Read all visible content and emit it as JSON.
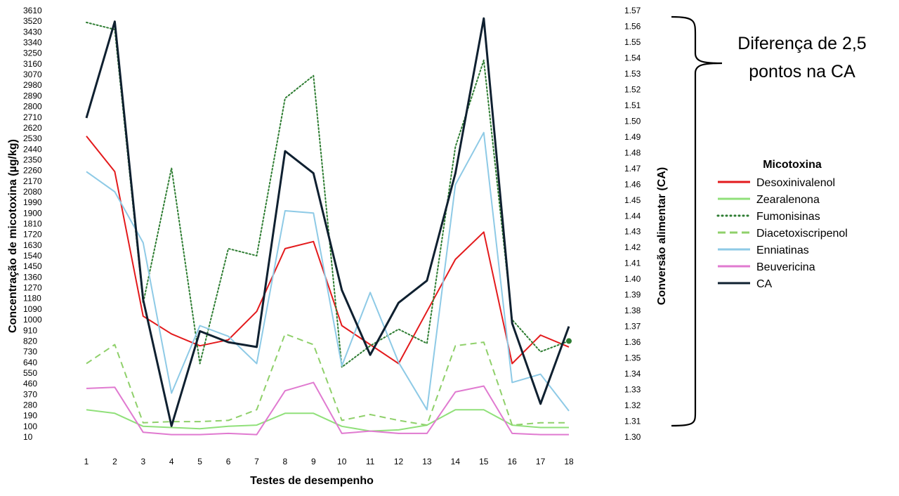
{
  "chart_data": {
    "type": "line",
    "xlabel": "Testes de desempenho",
    "ylabel": "Concentração de micotoxina (µg/kg)",
    "y2label": "Conversão alimentar (CA)",
    "x": [
      1,
      2,
      3,
      4,
      5,
      6,
      7,
      8,
      9,
      10,
      11,
      12,
      13,
      14,
      15,
      16,
      17,
      18
    ],
    "y_ticks": [
      10,
      100,
      190,
      280,
      370,
      460,
      550,
      640,
      730,
      820,
      910,
      1000,
      1090,
      1180,
      1270,
      1360,
      1450,
      1540,
      1630,
      1720,
      1810,
      1900,
      1990,
      2080,
      2170,
      2260,
      2350,
      2440,
      2530,
      2620,
      2710,
      2800,
      2890,
      2980,
      3070,
      3160,
      3250,
      3340,
      3430,
      3520,
      3610
    ],
    "ylim": [
      10,
      3610
    ],
    "y2_ticks": [
      "1.30",
      "1.31",
      "1.32",
      "1.33",
      "1.34",
      "1.35",
      "1.36",
      "1.37",
      "1.38",
      "1.39",
      "1.40",
      "1.41",
      "1.42",
      "1.43",
      "1.44",
      "1.45",
      "1.46",
      "1.47",
      "1.48",
      "1.49",
      "1.50",
      "1.51",
      "1.52",
      "1.53",
      "1.54",
      "1.55",
      "1.56",
      "1.57"
    ],
    "y2lim": [
      1.3,
      1.57
    ],
    "legend_title": "Micotoxina",
    "legend_position": "right",
    "annotation": [
      "Diferença de 2,5",
      "pontos na CA"
    ],
    "series": [
      {
        "name": "Desoxinivalenol",
        "axis": "left",
        "style": "solid",
        "color": "#e31a1c",
        "values": [
          2550,
          2250,
          1030,
          880,
          780,
          830,
          1070,
          1600,
          1660,
          950,
          790,
          630,
          1070,
          1510,
          1740,
          630,
          870,
          770
        ]
      },
      {
        "name": "Zearalenona",
        "axis": "left",
        "style": "solid",
        "color": "#90e07a",
        "values": [
          240,
          210,
          100,
          90,
          80,
          100,
          110,
          210,
          210,
          100,
          60,
          70,
          110,
          240,
          240,
          110,
          90,
          90
        ]
      },
      {
        "name": "Fumonisinas",
        "axis": "left",
        "style": "dotted",
        "color": "#2e7d32",
        "values": [
          3510,
          3450,
          1140,
          2280,
          630,
          1600,
          1540,
          2870,
          3060,
          600,
          780,
          920,
          800,
          2460,
          3190,
          1000,
          730,
          820
        ]
      },
      {
        "name": "Diacetoxiscripenol",
        "axis": "left",
        "style": "dashed",
        "color": "#8fd06a",
        "values": [
          630,
          790,
          130,
          140,
          140,
          150,
          240,
          880,
          790,
          150,
          200,
          150,
          110,
          780,
          810,
          110,
          130,
          130
        ]
      },
      {
        "name": "Enniatinas",
        "axis": "left",
        "style": "solid",
        "color": "#8ecae6",
        "values": [
          2250,
          2080,
          1650,
          380,
          950,
          860,
          630,
          1920,
          1900,
          610,
          1230,
          640,
          240,
          2140,
          2580,
          470,
          540,
          230
        ]
      },
      {
        "name": "Beuvericina",
        "axis": "left",
        "style": "solid",
        "color": "#e07ad0",
        "values": [
          420,
          430,
          50,
          30,
          30,
          40,
          30,
          400,
          470,
          40,
          60,
          40,
          40,
          390,
          440,
          40,
          30,
          30
        ]
      },
      {
        "name": "CA",
        "axis": "right",
        "style": "solid",
        "color": "#0f2030",
        "values": [
          1.502,
          1.563,
          1.387,
          1.307,
          1.367,
          1.36,
          1.357,
          1.481,
          1.467,
          1.393,
          1.352,
          1.385,
          1.399,
          1.467,
          1.565,
          1.372,
          1.321,
          1.37
        ]
      }
    ]
  }
}
